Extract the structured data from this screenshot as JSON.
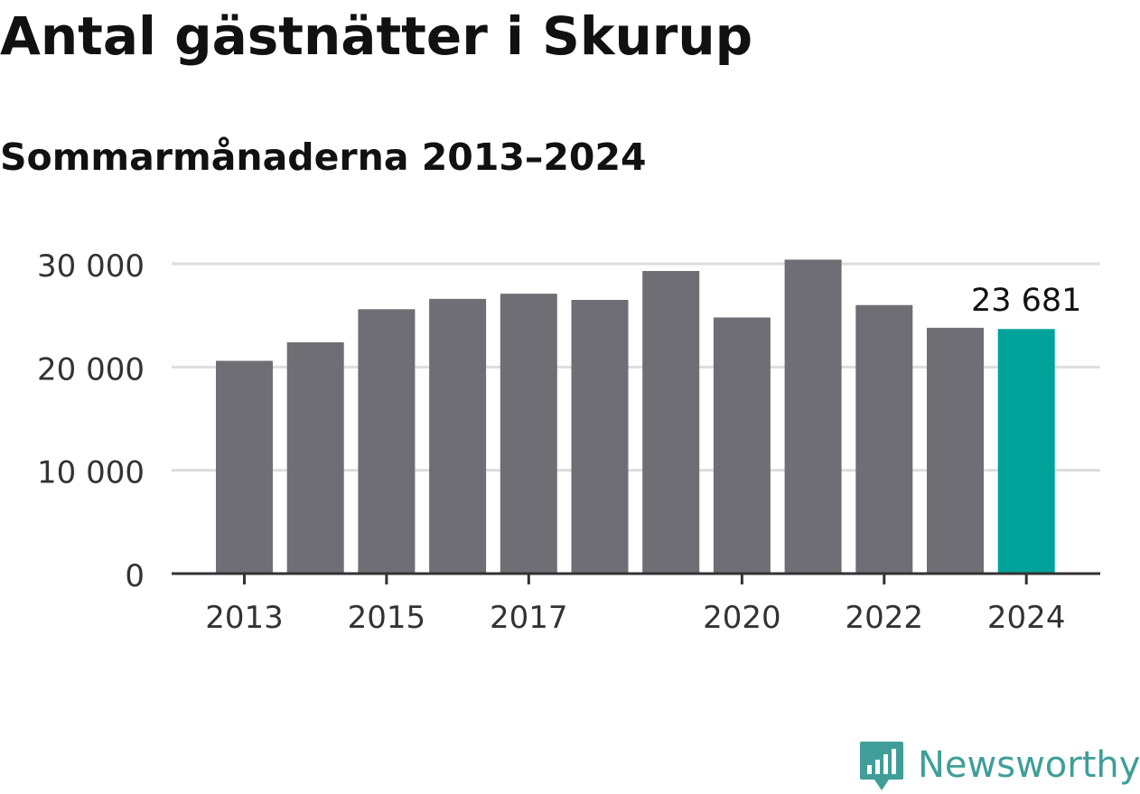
{
  "title": "Antal gästnätter i Skurup",
  "subtitle": "Sommarmånaderna 2013–2024",
  "brand": {
    "name": "Newsworthy",
    "logo_icon": "newsworthy-logo-icon",
    "color": "#3f9e98"
  },
  "colors": {
    "bar": "#6f6e74",
    "highlight": "#00a39a",
    "grid": "#dddddd",
    "axis": "#333333",
    "text": "#333333"
  },
  "chart_data": {
    "type": "bar",
    "categories": [
      "2013",
      "2014",
      "2015",
      "2016",
      "2017",
      "2018",
      "2019",
      "2020",
      "2021",
      "2022",
      "2023",
      "2024"
    ],
    "values": [
      20600,
      22400,
      25600,
      26600,
      27100,
      26500,
      29300,
      24800,
      30400,
      26000,
      23800,
      23681
    ],
    "highlight_index": 11,
    "highlight_label": "23 681",
    "x_tick_labels": [
      "2013",
      "",
      "2015",
      "",
      "2017",
      "",
      "",
      "2020",
      "",
      "2022",
      "",
      "2024"
    ],
    "y_ticks": [
      0,
      10000,
      20000,
      30000
    ],
    "y_tick_labels": [
      "0",
      "10 000",
      "20 000",
      "30 000"
    ],
    "ylim": [
      0,
      30000
    ],
    "grid": true,
    "xlabel": "",
    "ylabel": ""
  }
}
